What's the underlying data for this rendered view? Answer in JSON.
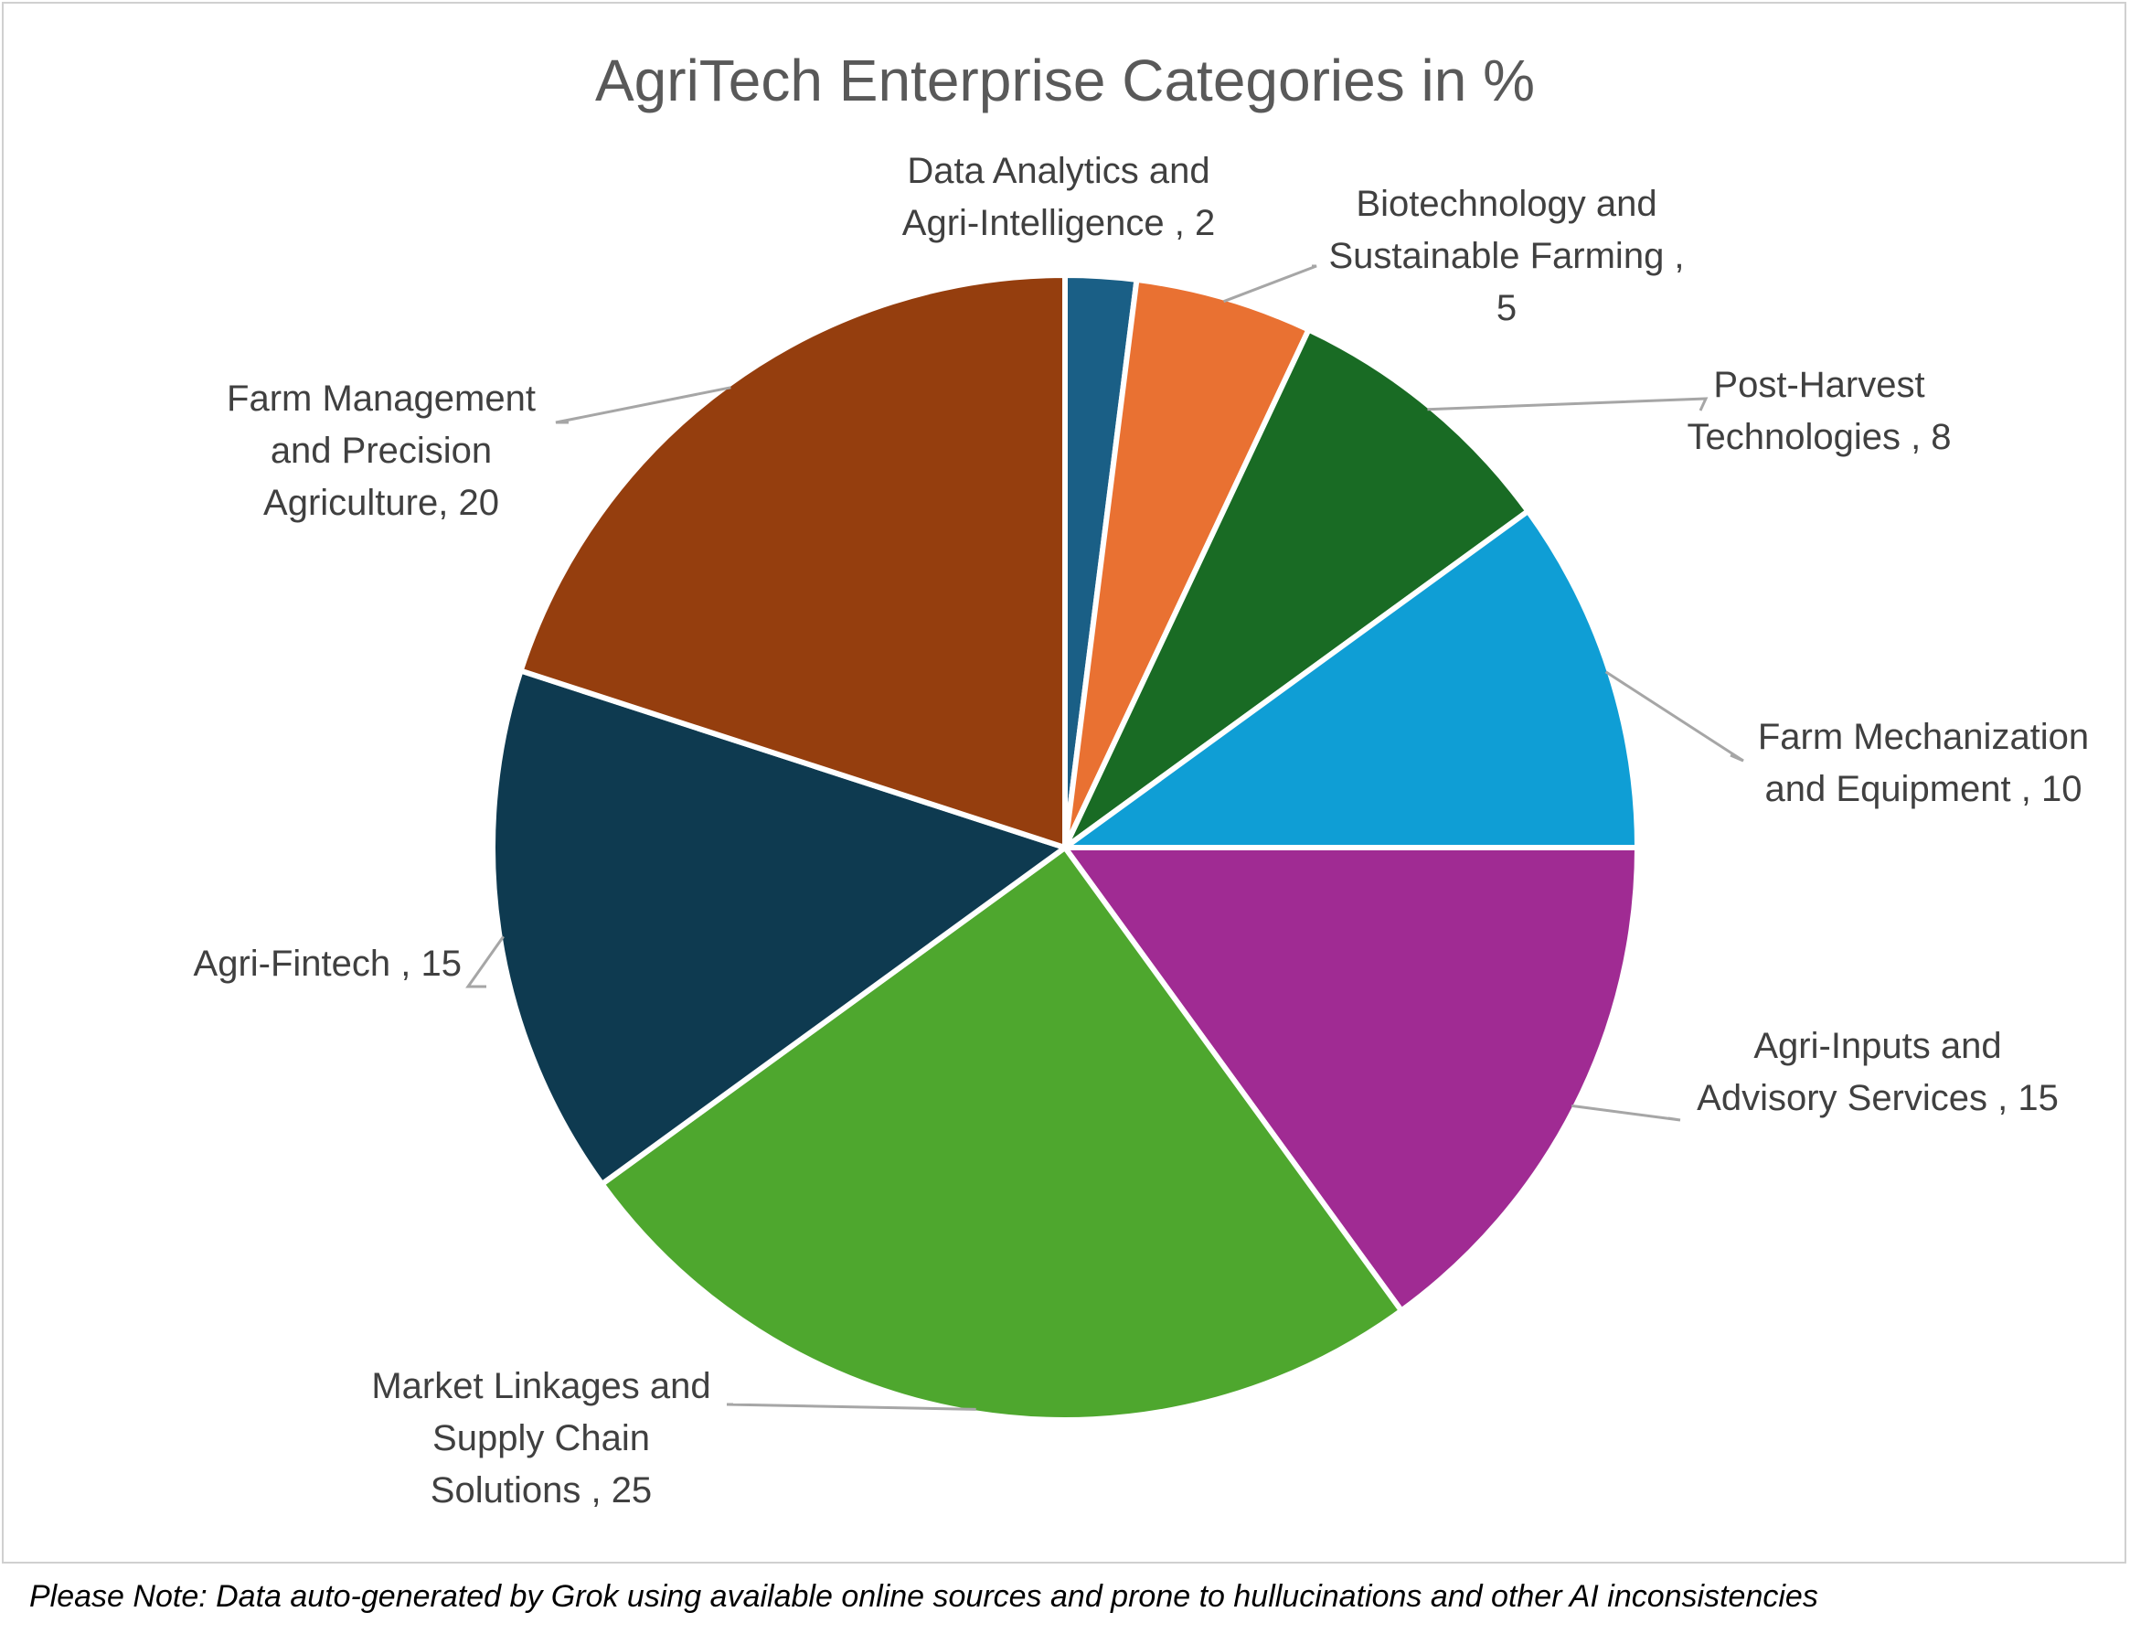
{
  "chart_data": {
    "type": "pie",
    "title": "AgriTech Enterprise Categories in %",
    "unit": "%",
    "slices": [
      {
        "label": "Data Analytics and Agri-Intelligence",
        "value": 2,
        "color": "#1a5f86",
        "label_lines": [
          "Data Analytics and",
          "Agri-Intelligence , 2"
        ]
      },
      {
        "label": "Biotechnology and Sustainable Farming",
        "value": 5,
        "color": "#e97132",
        "label_lines": [
          "Biotechnology and",
          "Sustainable Farming ,",
          "5"
        ]
      },
      {
        "label": "Post-Harvest Technologies",
        "value": 8,
        "color": "#196b24",
        "label_lines": [
          "Post-Harvest",
          "Technologies , 8"
        ]
      },
      {
        "label": "Farm Mechanization and Equipment",
        "value": 10,
        "color": "#0f9ed5",
        "label_lines": [
          "Farm Mechanization",
          "and Equipment , 10"
        ]
      },
      {
        "label": "Agri-Inputs and Advisory Services",
        "value": 15,
        "color": "#a02b93",
        "label_lines": [
          "Agri-Inputs and",
          "Advisory Services , 15"
        ]
      },
      {
        "label": "Market Linkages and Supply Chain Solutions",
        "value": 25,
        "color": "#4ea72e",
        "label_lines": [
          "Market Linkages and",
          "Supply Chain",
          "Solutions , 25"
        ]
      },
      {
        "label": "Agri-Fintech",
        "value": 15,
        "color": "#0e3a50",
        "label_lines": [
          "Agri-Fintech , 15"
        ]
      },
      {
        "label": "Farm Management and Precision Agriculture",
        "value": 20,
        "color": "#953e0e",
        "label_lines": [
          "Farm Management",
          "and Precision",
          "Agriculture, 20"
        ]
      }
    ]
  },
  "footer_note": "Please Note: Data auto-generated by Grok using available online sources and prone to hullucinations and other AI inconsistencies"
}
